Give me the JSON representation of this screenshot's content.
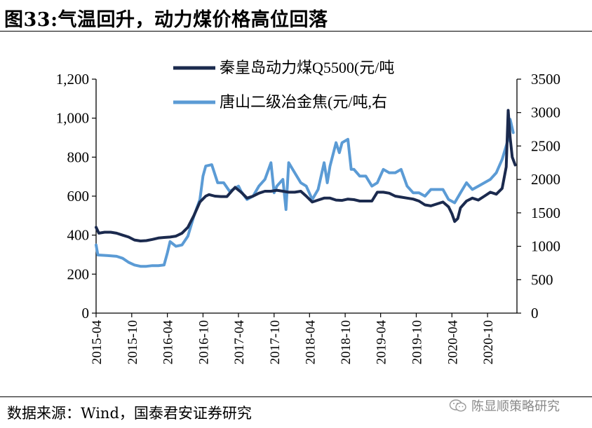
{
  "header": {
    "title": "图33:气温回升，动力煤价格高位回落"
  },
  "footer": {
    "source": "数据来源：Wind，国泰君安证券研究",
    "watermark": "陈显顺策略研究",
    "watermark_icon": "wechat-icon"
  },
  "chart_data": {
    "type": "line",
    "title": "",
    "xlabel": "",
    "ylabel": "",
    "x_ticks": [
      "2015-04",
      "2015-10",
      "2016-04",
      "2016-10",
      "2017-04",
      "2017-10",
      "2018-04",
      "2018-10",
      "2019-04",
      "2019-10",
      "2020-04",
      "2020-10"
    ],
    "x_range": [
      "2015-04-01",
      "2021-03-01"
    ],
    "ylim_left": [
      0,
      1200
    ],
    "y_ticks_left": [
      "0",
      "200",
      "400",
      "600",
      "800",
      "1,000",
      "1,200"
    ],
    "ylim_right": [
      0,
      3500
    ],
    "y_ticks_right": [
      "0",
      "500",
      "1000",
      "1500",
      "2000",
      "2500",
      "3000",
      "3500"
    ],
    "grid": false,
    "legend_position": "top-center",
    "series": [
      {
        "name": "秦皇岛动力煤Q5500(元/吨",
        "axis": "left",
        "color": "#1b2a4e",
        "points": [
          [
            "2015-04-01",
            440
          ],
          [
            "2015-04-15",
            410
          ],
          [
            "2015-05-15",
            415
          ],
          [
            "2015-06-15",
            415
          ],
          [
            "2015-07-15",
            410
          ],
          [
            "2015-08-15",
            400
          ],
          [
            "2015-09-15",
            390
          ],
          [
            "2015-10-15",
            375
          ],
          [
            "2015-11-15",
            370
          ],
          [
            "2015-12-15",
            372
          ],
          [
            "2016-01-15",
            378
          ],
          [
            "2016-02-15",
            385
          ],
          [
            "2016-03-15",
            388
          ],
          [
            "2016-04-15",
            390
          ],
          [
            "2016-05-15",
            395
          ],
          [
            "2016-06-15",
            410
          ],
          [
            "2016-07-15",
            440
          ],
          [
            "2016-08-15",
            500
          ],
          [
            "2016-09-15",
            570
          ],
          [
            "2016-10-15",
            600
          ],
          [
            "2016-11-01",
            608
          ],
          [
            "2016-12-01",
            600
          ],
          [
            "2017-01-01",
            598
          ],
          [
            "2017-02-01",
            598
          ],
          [
            "2017-03-01",
            630
          ],
          [
            "2017-03-15",
            645
          ],
          [
            "2017-04-15",
            620
          ],
          [
            "2017-05-15",
            590
          ],
          [
            "2017-06-15",
            600
          ],
          [
            "2017-07-15",
            615
          ],
          [
            "2017-08-15",
            625
          ],
          [
            "2017-09-15",
            625
          ],
          [
            "2017-10-15",
            630
          ],
          [
            "2017-11-15",
            625
          ],
          [
            "2017-12-15",
            620
          ],
          [
            "2018-01-15",
            620
          ],
          [
            "2018-02-15",
            625
          ],
          [
            "2018-03-15",
            600
          ],
          [
            "2018-04-15",
            570
          ],
          [
            "2018-05-15",
            580
          ],
          [
            "2018-06-15",
            590
          ],
          [
            "2018-07-15",
            590
          ],
          [
            "2018-08-15",
            580
          ],
          [
            "2018-09-15",
            578
          ],
          [
            "2018-10-15",
            585
          ],
          [
            "2018-11-15",
            582
          ],
          [
            "2018-12-15",
            575
          ],
          [
            "2019-01-15",
            575
          ],
          [
            "2019-02-15",
            575
          ],
          [
            "2019-03-15",
            620
          ],
          [
            "2019-04-15",
            620
          ],
          [
            "2019-05-15",
            615
          ],
          [
            "2019-06-15",
            600
          ],
          [
            "2019-07-15",
            595
          ],
          [
            "2019-08-15",
            590
          ],
          [
            "2019-09-15",
            585
          ],
          [
            "2019-10-15",
            575
          ],
          [
            "2019-11-15",
            555
          ],
          [
            "2019-12-15",
            550
          ],
          [
            "2020-01-15",
            560
          ],
          [
            "2020-02-15",
            570
          ],
          [
            "2020-03-15",
            545
          ],
          [
            "2020-04-01",
            510
          ],
          [
            "2020-04-15",
            470
          ],
          [
            "2020-05-01",
            485
          ],
          [
            "2020-05-15",
            540
          ],
          [
            "2020-06-15",
            575
          ],
          [
            "2020-07-15",
            590
          ],
          [
            "2020-08-15",
            580
          ],
          [
            "2020-09-15",
            600
          ],
          [
            "2020-10-15",
            620
          ],
          [
            "2020-11-15",
            610
          ],
          [
            "2020-12-15",
            640
          ],
          [
            "2021-01-05",
            750
          ],
          [
            "2021-01-15",
            1040
          ],
          [
            "2021-01-25",
            900
          ],
          [
            "2021-02-05",
            800
          ],
          [
            "2021-02-20",
            760
          ]
        ]
      },
      {
        "name": "唐山二级冶金焦(元/吨,右",
        "axis": "right",
        "color": "#5b9bd5",
        "points": [
          [
            "2015-04-01",
            1020
          ],
          [
            "2015-04-10",
            870
          ],
          [
            "2015-06-01",
            860
          ],
          [
            "2015-07-15",
            850
          ],
          [
            "2015-08-15",
            820
          ],
          [
            "2015-09-15",
            760
          ],
          [
            "2015-10-15",
            720
          ],
          [
            "2015-11-15",
            700
          ],
          [
            "2015-12-15",
            700
          ],
          [
            "2016-01-15",
            710
          ],
          [
            "2016-02-15",
            710
          ],
          [
            "2016-03-15",
            720
          ],
          [
            "2016-04-01",
            900
          ],
          [
            "2016-04-15",
            1070
          ],
          [
            "2016-05-15",
            1000
          ],
          [
            "2016-06-15",
            1020
          ],
          [
            "2016-07-15",
            1150
          ],
          [
            "2016-08-15",
            1450
          ],
          [
            "2016-09-15",
            1700
          ],
          [
            "2016-10-01",
            2050
          ],
          [
            "2016-10-15",
            2200
          ],
          [
            "2016-11-15",
            2220
          ],
          [
            "2016-12-15",
            1950
          ],
          [
            "2017-01-15",
            1950
          ],
          [
            "2017-02-15",
            1820
          ],
          [
            "2017-03-15",
            1870
          ],
          [
            "2017-04-01",
            1900
          ],
          [
            "2017-04-15",
            1820
          ],
          [
            "2017-05-15",
            1700
          ],
          [
            "2017-06-15",
            1750
          ],
          [
            "2017-07-15",
            1900
          ],
          [
            "2017-08-15",
            2000
          ],
          [
            "2017-09-15",
            2250
          ],
          [
            "2017-10-01",
            1800
          ],
          [
            "2017-10-15",
            1900
          ],
          [
            "2017-11-15",
            2000
          ],
          [
            "2017-12-01",
            1550
          ],
          [
            "2017-12-15",
            2250
          ],
          [
            "2018-01-15",
            2100
          ],
          [
            "2018-02-15",
            1950
          ],
          [
            "2018-03-15",
            1900
          ],
          [
            "2018-04-15",
            1700
          ],
          [
            "2018-05-15",
            1850
          ],
          [
            "2018-06-15",
            2250
          ],
          [
            "2018-07-01",
            1950
          ],
          [
            "2018-07-15",
            2200
          ],
          [
            "2018-08-15",
            2550
          ],
          [
            "2018-09-01",
            2400
          ],
          [
            "2018-09-15",
            2550
          ],
          [
            "2018-10-15",
            2600
          ],
          [
            "2018-11-01",
            2150
          ],
          [
            "2018-11-15",
            2150
          ],
          [
            "2018-12-15",
            2050
          ],
          [
            "2019-01-15",
            2050
          ],
          [
            "2019-02-15",
            1900
          ],
          [
            "2019-03-15",
            1950
          ],
          [
            "2019-04-15",
            2150
          ],
          [
            "2019-05-15",
            2100
          ],
          [
            "2019-06-15",
            2100
          ],
          [
            "2019-07-15",
            2150
          ],
          [
            "2019-08-15",
            1900
          ],
          [
            "2019-09-15",
            1800
          ],
          [
            "2019-10-15",
            1800
          ],
          [
            "2019-11-15",
            1750
          ],
          [
            "2019-12-15",
            1850
          ],
          [
            "2020-01-15",
            1850
          ],
          [
            "2020-02-15",
            1850
          ],
          [
            "2020-03-15",
            1700
          ],
          [
            "2020-04-15",
            1650
          ],
          [
            "2020-05-15",
            1800
          ],
          [
            "2020-06-15",
            1950
          ],
          [
            "2020-07-15",
            1850
          ],
          [
            "2020-08-15",
            1900
          ],
          [
            "2020-09-15",
            1950
          ],
          [
            "2020-10-15",
            2000
          ],
          [
            "2020-11-15",
            2100
          ],
          [
            "2020-12-15",
            2300
          ],
          [
            "2021-01-15",
            2600
          ],
          [
            "2021-01-25",
            2900
          ],
          [
            "2021-02-10",
            2700
          ]
        ]
      }
    ]
  }
}
